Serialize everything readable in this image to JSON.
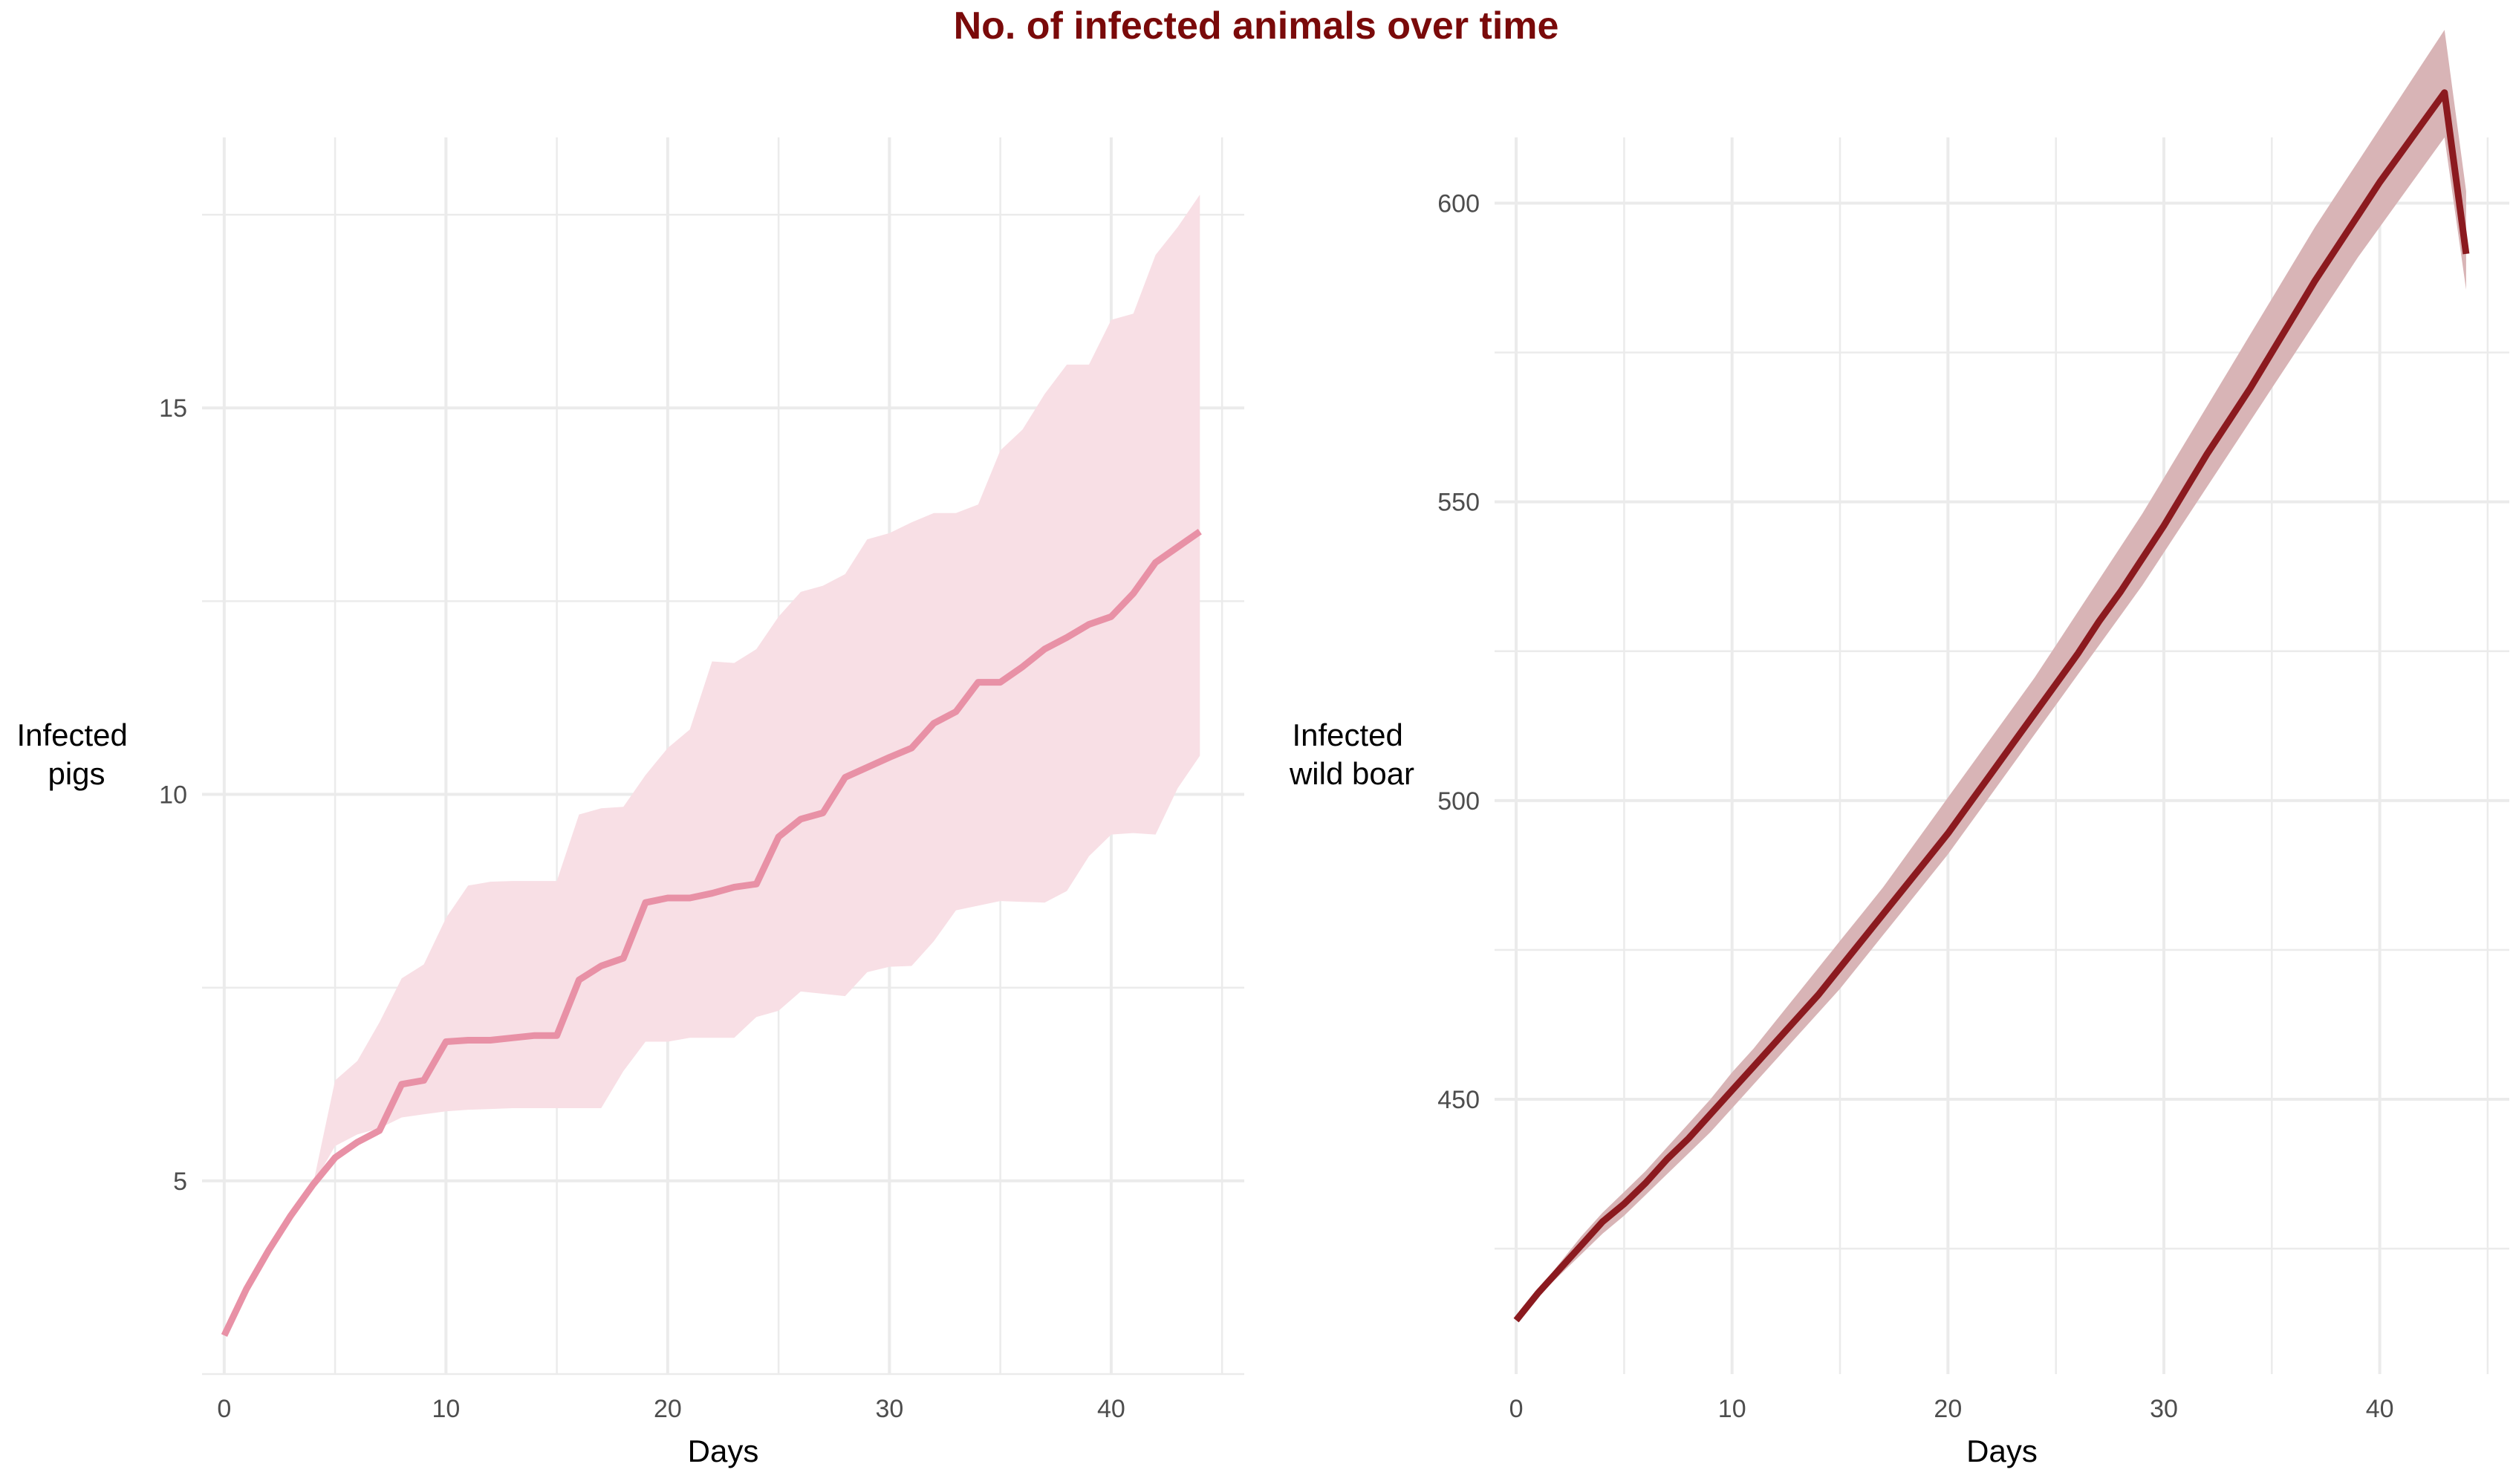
{
  "title": "No. of infected animals over time",
  "colors": {
    "title": "#7a0a0a",
    "pigs_line": "#e891a6",
    "pigs_band": "#f8dfe5",
    "boar_line": "#8b1a1f",
    "boar_band": "#d8b4b6",
    "grid": "#ebebeb"
  },
  "chart_data": [
    {
      "type": "line",
      "panel": "left",
      "xlabel": "Days",
      "ylabel_lines": [
        "Infected",
        "pigs"
      ],
      "xlim": [
        -1,
        46
      ],
      "ylim": [
        2.5,
        18.5
      ],
      "x_ticks": [
        0,
        10,
        20,
        30,
        40
      ],
      "x_tick_labels": [
        "0",
        "10",
        "20",
        "30",
        "40"
      ],
      "y_ticks": [
        5,
        10,
        15
      ],
      "y_tick_labels": [
        "5",
        "10",
        "15"
      ],
      "grid": true,
      "legend": "none",
      "band_start_x": 4,
      "x": [
        0,
        1,
        2,
        3,
        4,
        5,
        6,
        7,
        8,
        9,
        10,
        11,
        12,
        13,
        14,
        15,
        16,
        17,
        18,
        19,
        20,
        21,
        22,
        23,
        24,
        25,
        26,
        27,
        28,
        29,
        30,
        31,
        32,
        33,
        34,
        35,
        36,
        37,
        38,
        39,
        40,
        41,
        42,
        43,
        44
      ],
      "mean": [
        3.0,
        3.6,
        4.1,
        4.55,
        4.95,
        5.3,
        5.5,
        5.65,
        6.25,
        6.3,
        6.8,
        6.82,
        6.82,
        6.85,
        6.88,
        6.88,
        7.6,
        7.78,
        7.88,
        8.6,
        8.66,
        8.66,
        8.72,
        8.8,
        8.84,
        9.45,
        9.68,
        9.76,
        10.22,
        10.35,
        10.48,
        10.6,
        10.92,
        11.07,
        11.45,
        11.45,
        11.65,
        11.88,
        12.03,
        12.2,
        12.3,
        12.6,
        13.0,
        13.2,
        13.4
      ],
      "lower": [
        3.0,
        3.6,
        4.1,
        4.55,
        4.95,
        5.45,
        5.6,
        5.68,
        5.82,
        5.86,
        5.9,
        5.92,
        5.93,
        5.94,
        5.94,
        5.94,
        5.94,
        5.94,
        6.42,
        6.8,
        6.8,
        6.85,
        6.85,
        6.85,
        7.12,
        7.2,
        7.45,
        7.42,
        7.39,
        7.7,
        7.77,
        7.78,
        8.1,
        8.5,
        8.56,
        8.62,
        8.61,
        8.6,
        8.75,
        9.2,
        9.48,
        9.5,
        9.48,
        10.08,
        10.5
      ],
      "upper": [
        3.0,
        3.6,
        4.1,
        4.55,
        4.95,
        6.3,
        6.55,
        7.05,
        7.62,
        7.8,
        8.4,
        8.82,
        8.87,
        8.88,
        8.88,
        8.88,
        9.74,
        9.82,
        9.84,
        10.25,
        10.6,
        10.84,
        11.72,
        11.7,
        11.88,
        12.3,
        12.62,
        12.7,
        12.85,
        13.3,
        13.38,
        13.52,
        13.64,
        13.64,
        13.75,
        14.45,
        14.72,
        15.18,
        15.56,
        15.56,
        16.14,
        16.22,
        16.98,
        17.34,
        17.76
      ]
    },
    {
      "type": "line",
      "panel": "right",
      "xlabel": "Days",
      "ylabel_lines": [
        "Infected",
        "wild boar"
      ],
      "xlim": [
        -1,
        46
      ],
      "ylim": [
        404,
        611
      ],
      "x_ticks": [
        0,
        10,
        20,
        30,
        40
      ],
      "x_tick_labels": [
        "0",
        "10",
        "20",
        "30",
        "40"
      ],
      "y_ticks": [
        450,
        500,
        550,
        600
      ],
      "y_tick_labels": [
        "450",
        "500",
        "550",
        "600"
      ],
      "grid": true,
      "legend": "none",
      "x": [
        0,
        1,
        2,
        3,
        4,
        5,
        6,
        7,
        8,
        9,
        10,
        11,
        12,
        13,
        14,
        15,
        16,
        17,
        18,
        19,
        20,
        21,
        22,
        23,
        24,
        25,
        26,
        27,
        28,
        29,
        30,
        31,
        32,
        33,
        34,
        35,
        36,
        37,
        38,
        39,
        40,
        41,
        42,
        43,
        44
      ],
      "mean": [
        413.0,
        417.5,
        421.5,
        425.5,
        429.5,
        432.5,
        436.0,
        440.0,
        443.5,
        447.5,
        451.5,
        455.5,
        459.5,
        463.5,
        467.5,
        472.0,
        476.5,
        481.0,
        485.5,
        490.0,
        494.5,
        499.5,
        504.5,
        509.5,
        514.5,
        519.5,
        524.5,
        530.0,
        535.0,
        540.5,
        546.0,
        552.0,
        558.0,
        563.5,
        569.0,
        575.0,
        581.0,
        587.0,
        592.5,
        598.0,
        603.5,
        608.5,
        613.5,
        618.5,
        591.5
      ],
      "lower": [
        413.0,
        417.0,
        420.5,
        424.0,
        427.5,
        430.5,
        434.0,
        437.5,
        441.0,
        444.5,
        448.5,
        452.5,
        456.5,
        460.5,
        464.5,
        468.5,
        473.0,
        477.5,
        482.0,
        486.5,
        491.0,
        496.0,
        501.0,
        506.0,
        511.0,
        516.0,
        521.0,
        526.0,
        531.0,
        536.0,
        541.5,
        547.0,
        552.5,
        558.0,
        563.5,
        569.0,
        574.5,
        580.0,
        585.5,
        591.0,
        596.0,
        601.0,
        606.0,
        611.0,
        585.5
      ],
      "upper": [
        413.0,
        418.0,
        422.5,
        427.0,
        431.0,
        434.5,
        438.0,
        442.0,
        446.0,
        450.0,
        454.5,
        458.5,
        463.0,
        467.5,
        472.0,
        476.5,
        481.0,
        485.5,
        490.5,
        495.5,
        500.5,
        505.5,
        510.5,
        515.5,
        520.5,
        526.0,
        531.5,
        537.0,
        542.5,
        548.0,
        554.0,
        560.0,
        566.0,
        572.0,
        578.0,
        584.0,
        590.0,
        596.0,
        601.5,
        607.0,
        612.5,
        618.0,
        623.5,
        629.0,
        602.0
      ]
    }
  ]
}
